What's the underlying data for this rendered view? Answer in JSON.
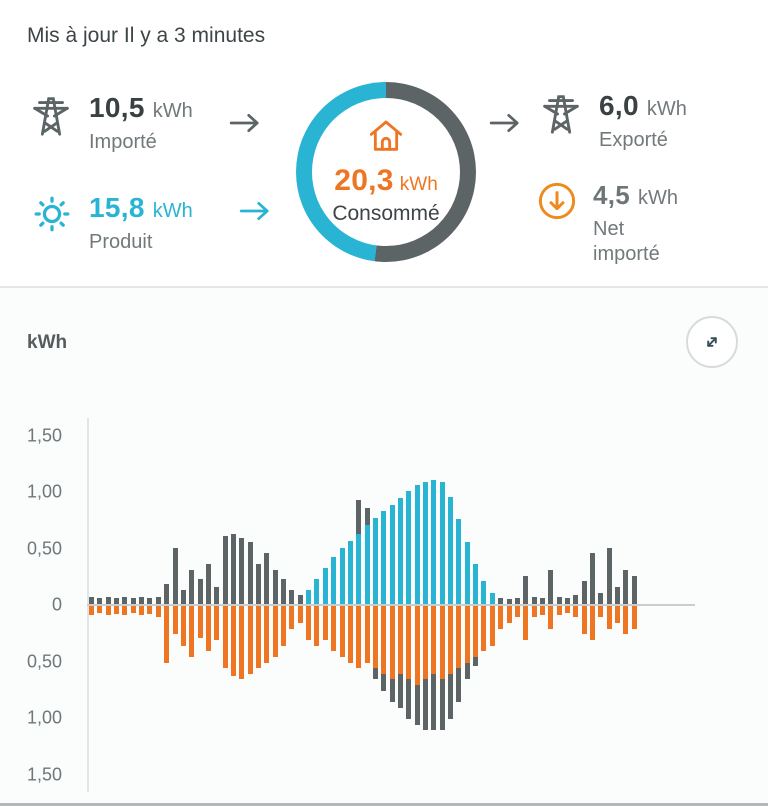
{
  "colors": {
    "cyan": "#29b4d4",
    "orange": "#ee7623",
    "gray": "#5d6466",
    "dark_text": "#3a4143",
    "muted_text": "#71797b"
  },
  "header": {
    "updated_text": "Mis à jour Il y a 3 minutes",
    "imported": {
      "value": "10,5",
      "unit": "kWh",
      "label": "Importé"
    },
    "produced": {
      "value": "15,8",
      "unit": "kWh",
      "label": "Produit"
    },
    "consumed": {
      "value": "20,3",
      "unit": "kWh",
      "label": "Consommé"
    },
    "exported": {
      "value": "6,0",
      "unit": "kWh",
      "label": "Exporté"
    },
    "net_imported": {
      "value": "4,5",
      "unit": "kWh",
      "label_line1": "Net",
      "label_line2": "importé"
    },
    "ring": {
      "imported_pct": 52,
      "produced_pct": 48
    }
  },
  "chart": {
    "unit_label": "kWh"
  },
  "chart_data": {
    "type": "bar",
    "orientation": "diverging",
    "ylabel": "kWh",
    "ylim": [
      -1.5,
      1.5
    ],
    "grid": false,
    "legend": "none",
    "ytick_labels": [
      "1,50",
      "1,00",
      "0,50",
      "0",
      "0,50",
      "1,00",
      "1,50"
    ],
    "ytick_values": [
      1.5,
      1.0,
      0.5,
      0,
      -0.5,
      -1.0,
      -1.5
    ],
    "series": [
      {
        "name": "produit",
        "label": "Produit",
        "color": "#29b4d4",
        "direction": "up",
        "values": [
          0,
          0,
          0,
          0,
          0,
          0,
          0,
          0,
          0,
          0,
          0,
          0,
          0,
          0,
          0,
          0,
          0,
          0,
          0,
          0,
          0,
          0,
          0,
          0,
          0,
          0,
          0.12,
          0.22,
          0.32,
          0.42,
          0.5,
          0.56,
          0.62,
          0.7,
          0.76,
          0.82,
          0.88,
          0.94,
          1,
          1.05,
          1.08,
          1.1,
          1.08,
          0.95,
          0.75,
          0.55,
          0.35,
          0.2,
          0.1,
          0,
          0,
          0,
          0,
          0,
          0,
          0,
          0,
          0,
          0,
          0,
          0,
          0,
          0,
          0,
          0,
          0
        ]
      },
      {
        "name": "importe",
        "label": "Importé",
        "color": "#5d6466",
        "direction": "up",
        "values": [
          0.06,
          0.05,
          0.06,
          0.05,
          0.06,
          0.05,
          0.06,
          0.05,
          0.06,
          0.18,
          0.5,
          0.12,
          0.3,
          0.22,
          0.35,
          0.15,
          0.6,
          0.62,
          0.58,
          0.55,
          0.35,
          0.45,
          0.3,
          0.22,
          0.12,
          0.08,
          0,
          0,
          0,
          0,
          0,
          0,
          0.3,
          0.15,
          0,
          0,
          0,
          0,
          0,
          0,
          0,
          0,
          0,
          0,
          0,
          0,
          0,
          0,
          0,
          0.05,
          0.04,
          0.05,
          0.25,
          0.06,
          0.05,
          0.3,
          0.06,
          0.05,
          0.08,
          0.2,
          0.45,
          0.1,
          0.5,
          0.15,
          0.3,
          0.25
        ]
      },
      {
        "name": "consomme",
        "label": "Consommé",
        "color": "#ee7623",
        "direction": "down",
        "values": [
          0.08,
          0.06,
          0.08,
          0.07,
          0.08,
          0.06,
          0.08,
          0.07,
          0.1,
          0.5,
          0.25,
          0.35,
          0.45,
          0.28,
          0.4,
          0.3,
          0.55,
          0.62,
          0.65,
          0.6,
          0.55,
          0.5,
          0.45,
          0.35,
          0.2,
          0.15,
          0.3,
          0.35,
          0.3,
          0.4,
          0.45,
          0.5,
          0.55,
          0.5,
          0.55,
          0.6,
          0.65,
          0.6,
          0.65,
          0.7,
          0.65,
          0.6,
          0.65,
          0.6,
          0.55,
          0.5,
          0.45,
          0.4,
          0.35,
          0.2,
          0.15,
          0.1,
          0.3,
          0.1,
          0.08,
          0.2,
          0.08,
          0.06,
          0.1,
          0.25,
          0.3,
          0.1,
          0.2,
          0.15,
          0.25,
          0.2
        ]
      },
      {
        "name": "exporte",
        "label": "Exporté",
        "color": "#5d6466",
        "direction": "down",
        "values": [
          0,
          0,
          0,
          0,
          0,
          0,
          0,
          0,
          0,
          0,
          0,
          0,
          0,
          0,
          0,
          0,
          0,
          0,
          0,
          0,
          0,
          0,
          0,
          0,
          0,
          0,
          0,
          0,
          0,
          0,
          0,
          0,
          0,
          0,
          0.1,
          0.15,
          0.2,
          0.3,
          0.35,
          0.35,
          0.45,
          0.5,
          0.45,
          0.4,
          0.3,
          0.15,
          0.08,
          0,
          0,
          0,
          0,
          0,
          0,
          0,
          0,
          0,
          0,
          0,
          0,
          0,
          0,
          0,
          0,
          0,
          0,
          0,
          0
        ]
      }
    ]
  }
}
